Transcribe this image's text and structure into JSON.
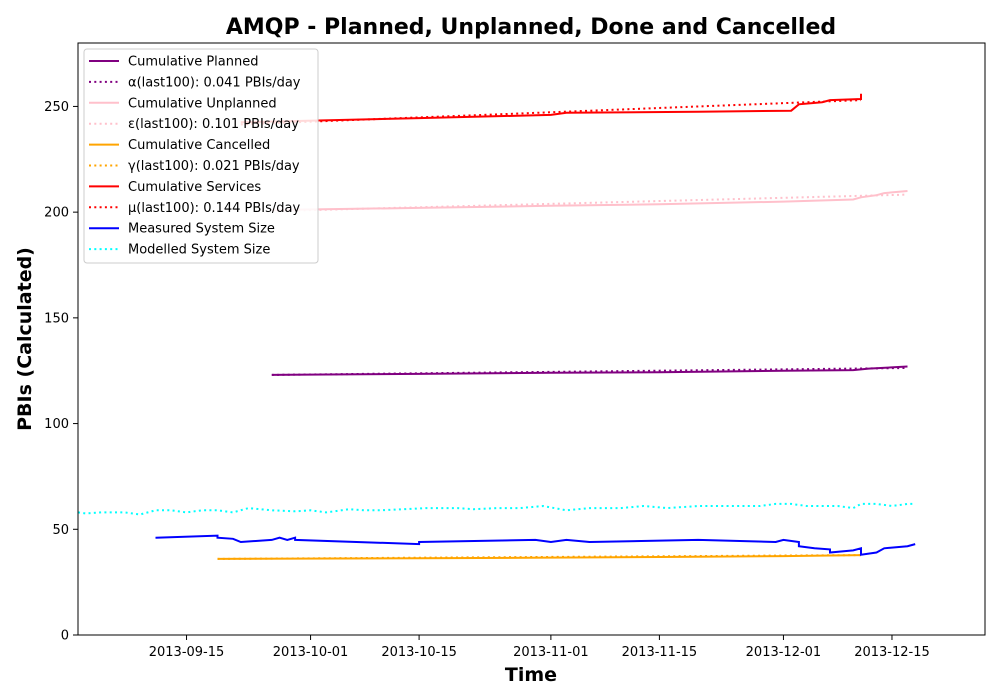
{
  "chart_data": {
    "type": "line",
    "title": "AMQP - Planned, Unplanned, Done  and Cancelled",
    "xlabel": "Time",
    "ylabel": "PBIs (Calculated)",
    "xlim": [
      "2013-09-01",
      "2013-12-27"
    ],
    "ylim": [
      0,
      280
    ],
    "x_ticks": [
      "2013-09-15",
      "2013-10-01",
      "2013-10-15",
      "2013-11-01",
      "2013-11-15",
      "2013-12-01",
      "2013-12-15"
    ],
    "y_ticks": [
      0,
      50,
      100,
      150,
      200,
      250
    ],
    "grid": false,
    "legend_position": "top-left",
    "series": [
      {
        "name": "Cumulative Planned",
        "color": "#800080",
        "style": "solid",
        "points": [
          [
            "2013-09-26",
            123
          ],
          [
            "2013-10-15",
            123.5
          ],
          [
            "2013-11-01",
            124
          ],
          [
            "2013-11-15",
            124.3
          ],
          [
            "2013-12-01",
            125
          ],
          [
            "2013-12-10",
            125.3
          ],
          [
            "2013-12-12",
            126
          ],
          [
            "2013-12-17",
            127
          ]
        ]
      },
      {
        "name": "α(last100): 0.041 PBIs/day",
        "color": "#800080",
        "style": "dotted",
        "points": [
          [
            "2013-09-26",
            123
          ],
          [
            "2013-12-17",
            126.3
          ]
        ]
      },
      {
        "name": "Cumulative Unplanned",
        "color": "#ffc0cb",
        "style": "solid",
        "points": [
          [
            "2013-09-26",
            201
          ],
          [
            "2013-10-15",
            202
          ],
          [
            "2013-11-01",
            203
          ],
          [
            "2013-11-15",
            203.7
          ],
          [
            "2013-12-01",
            205
          ],
          [
            "2013-12-10",
            206
          ],
          [
            "2013-12-11",
            207
          ],
          [
            "2013-12-13",
            208
          ],
          [
            "2013-12-14",
            209
          ],
          [
            "2013-12-17",
            210
          ]
        ]
      },
      {
        "name": "ε(last100): 0.101 PBIs/day",
        "color": "#ffc0cb",
        "style": "dotted",
        "points": [
          [
            "2013-09-26",
            200.5
          ],
          [
            "2013-12-17",
            208.3
          ]
        ]
      },
      {
        "name": "Cumulative Cancelled",
        "color": "#ffa500",
        "style": "solid",
        "points": [
          [
            "2013-09-19",
            36
          ],
          [
            "2013-10-15",
            36.3
          ],
          [
            "2013-11-01",
            36.6
          ],
          [
            "2013-11-15",
            36.9
          ],
          [
            "2013-12-01",
            37.3
          ],
          [
            "2013-12-11",
            37.8
          ]
        ]
      },
      {
        "name": "γ(last100): 0.021 PBIs/day",
        "color": "#ffa500",
        "style": "dotted",
        "points": [
          [
            "2013-09-19",
            36
          ],
          [
            "2013-12-11",
            37.8
          ]
        ]
      },
      {
        "name": "Cumulative Services",
        "color": "#ff0000",
        "style": "solid",
        "points": [
          [
            "2013-09-22",
            242.5
          ],
          [
            "2013-10-15",
            244.5
          ],
          [
            "2013-11-01",
            246
          ],
          [
            "2013-11-03",
            247
          ],
          [
            "2013-11-20",
            247.5
          ],
          [
            "2013-12-02",
            248
          ],
          [
            "2013-12-03",
            251
          ],
          [
            "2013-12-06",
            252
          ],
          [
            "2013-12-07",
            253
          ],
          [
            "2013-12-11",
            253.5
          ],
          [
            "2013-12-11",
            256
          ]
        ]
      },
      {
        "name": "μ(last100): 0.144 PBIs/day",
        "color": "#ff0000",
        "style": "dotted",
        "points": [
          [
            "2013-09-22",
            241.5
          ],
          [
            "2013-12-11",
            253
          ]
        ]
      },
      {
        "name": "Measured System Size",
        "color": "#0000ff",
        "style": "solid",
        "points": [
          [
            "2013-09-11",
            46
          ],
          [
            "2013-09-19",
            47
          ],
          [
            "2013-09-19",
            46
          ],
          [
            "2013-09-21",
            45.5
          ],
          [
            "2013-09-22",
            44
          ],
          [
            "2013-09-26",
            45
          ],
          [
            "2013-09-27",
            46
          ],
          [
            "2013-09-28",
            45
          ],
          [
            "2013-09-29",
            46
          ],
          [
            "2013-09-29",
            45
          ],
          [
            "2013-10-15",
            43
          ],
          [
            "2013-10-15",
            44
          ],
          [
            "2013-10-30",
            45
          ],
          [
            "2013-11-01",
            44
          ],
          [
            "2013-11-03",
            45
          ],
          [
            "2013-11-06",
            44
          ],
          [
            "2013-11-20",
            45
          ],
          [
            "2013-11-30",
            44
          ],
          [
            "2013-12-01",
            45
          ],
          [
            "2013-12-03",
            44
          ],
          [
            "2013-12-03",
            42
          ],
          [
            "2013-12-05",
            41
          ],
          [
            "2013-12-07",
            40.5
          ],
          [
            "2013-12-07",
            39
          ],
          [
            "2013-12-10",
            40
          ],
          [
            "2013-12-11",
            41
          ],
          [
            "2013-12-11",
            38
          ],
          [
            "2013-12-13",
            39
          ],
          [
            "2013-12-14",
            41
          ],
          [
            "2013-12-17",
            42
          ],
          [
            "2013-12-18",
            43
          ]
        ]
      },
      {
        "name": "Modelled System Size",
        "color": "#00ffff",
        "style": "dotted",
        "points": [
          [
            "2013-09-01",
            58
          ],
          [
            "2013-09-02",
            57.5
          ],
          [
            "2013-09-04",
            58
          ],
          [
            "2013-09-07",
            58
          ],
          [
            "2013-09-09",
            57
          ],
          [
            "2013-09-11",
            59
          ],
          [
            "2013-09-13",
            59
          ],
          [
            "2013-09-15",
            58
          ],
          [
            "2013-09-17",
            59
          ],
          [
            "2013-09-19",
            59
          ],
          [
            "2013-09-21",
            58
          ],
          [
            "2013-09-23",
            60
          ],
          [
            "2013-09-26",
            59
          ],
          [
            "2013-09-29",
            58.5
          ],
          [
            "2013-10-01",
            59
          ],
          [
            "2013-10-03",
            58
          ],
          [
            "2013-10-06",
            59.5
          ],
          [
            "2013-10-08",
            59
          ],
          [
            "2013-10-10",
            59
          ],
          [
            "2013-10-13",
            59.5
          ],
          [
            "2013-10-16",
            60
          ],
          [
            "2013-10-20",
            60
          ],
          [
            "2013-10-22",
            59.5
          ],
          [
            "2013-10-25",
            60
          ],
          [
            "2013-10-28",
            60
          ],
          [
            "2013-10-31",
            61
          ],
          [
            "2013-11-03",
            59
          ],
          [
            "2013-11-06",
            60
          ],
          [
            "2013-11-10",
            60
          ],
          [
            "2013-11-13",
            61
          ],
          [
            "2013-11-16",
            60
          ],
          [
            "2013-11-20",
            61
          ],
          [
            "2013-11-24",
            61
          ],
          [
            "2013-11-28",
            61
          ],
          [
            "2013-11-30",
            62
          ],
          [
            "2013-12-02",
            62
          ],
          [
            "2013-12-04",
            61
          ],
          [
            "2013-12-06",
            61
          ],
          [
            "2013-12-08",
            61
          ],
          [
            "2013-12-10",
            60
          ],
          [
            "2013-12-11",
            62
          ],
          [
            "2013-12-13",
            62
          ],
          [
            "2013-12-15",
            61
          ],
          [
            "2013-12-17",
            62
          ],
          [
            "2013-12-18",
            62
          ]
        ]
      }
    ]
  }
}
